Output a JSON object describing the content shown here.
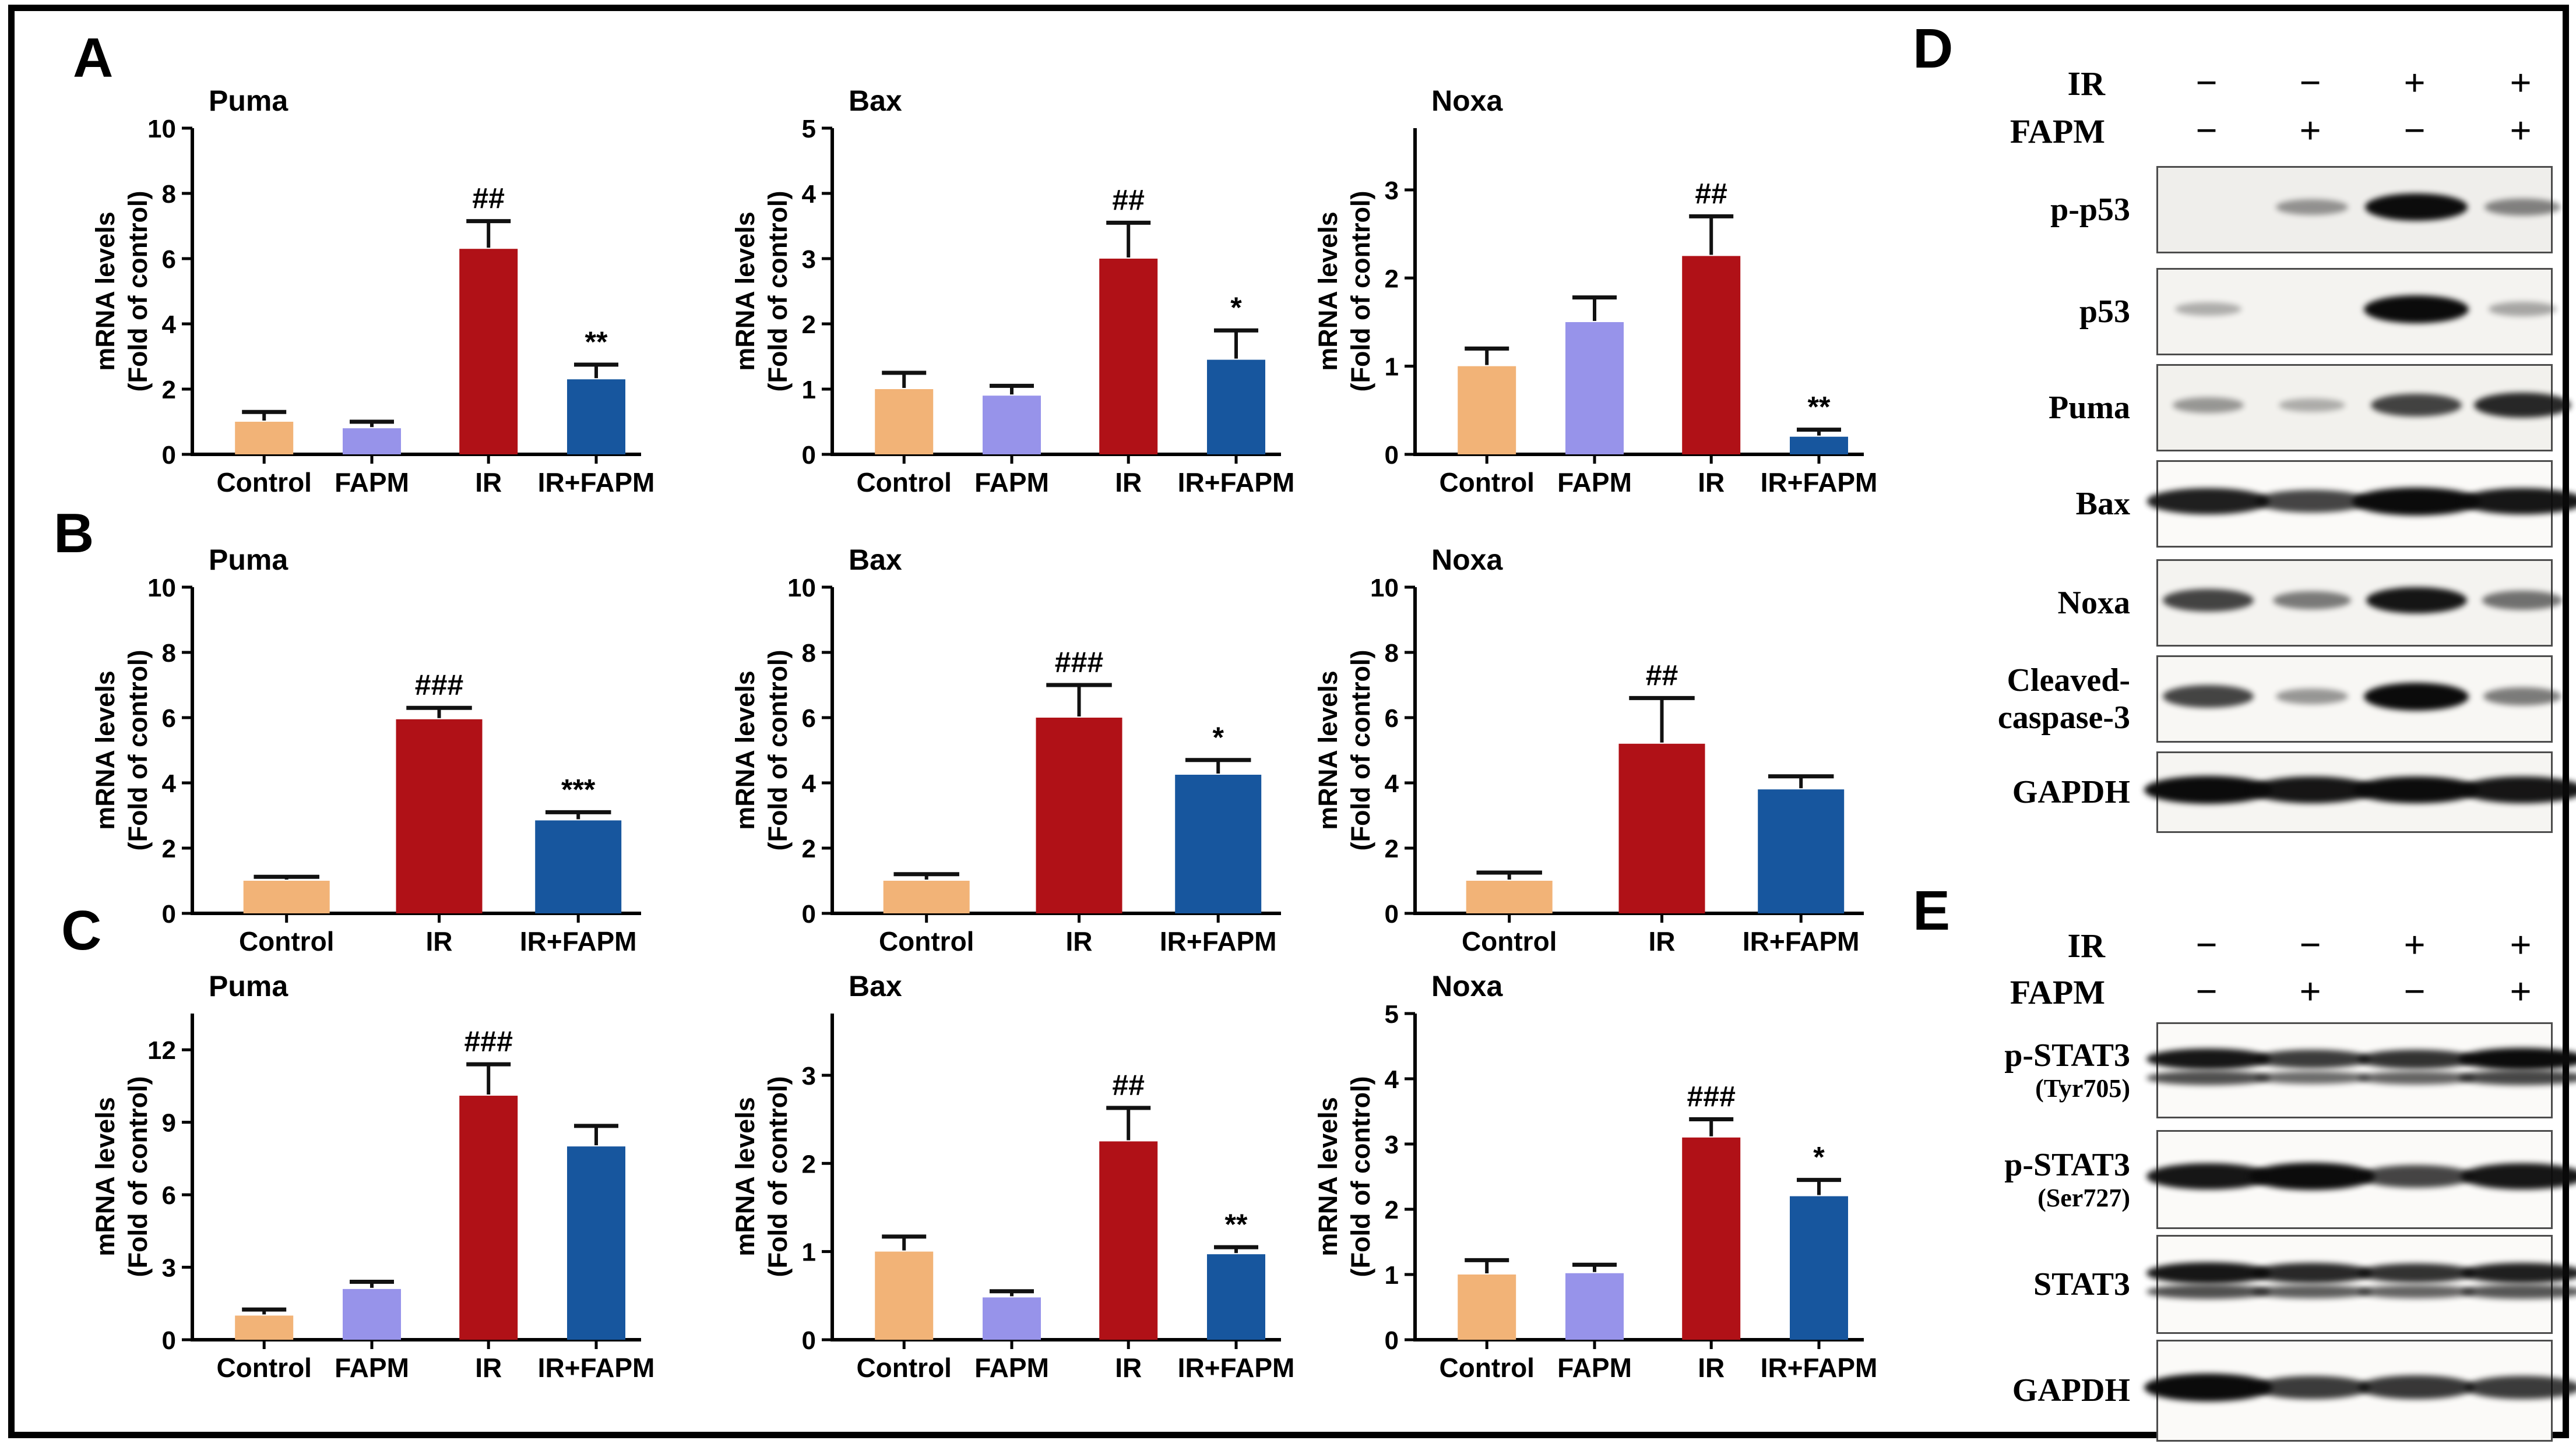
{
  "panels": {
    "a": "A",
    "b": "B",
    "c": "C",
    "d": "D",
    "e": "E"
  },
  "palette": {
    "control": "#F2B377",
    "fapm": "#9793EA",
    "ir": "#B01117",
    "ir_fapm": "#17569E",
    "axis": "#000000",
    "error_bar": "#111111"
  },
  "chart_data": [
    {
      "panel": "A",
      "row": 0,
      "col": 0,
      "type": "bar",
      "title": "Puma",
      "ylabel1": "mRNA levels",
      "ylabel2": "(Fold of control)",
      "categories": [
        "Control",
        "FAPM",
        "IR",
        "IR+FAPM"
      ],
      "color_keys": [
        "control",
        "fapm",
        "ir",
        "ir_fapm"
      ],
      "values": [
        1.0,
        0.8,
        6.3,
        2.3
      ],
      "errors": [
        0.3,
        0.2,
        0.85,
        0.45
      ],
      "annotations": [
        "",
        "",
        "##",
        "**"
      ],
      "yticks": [
        0,
        2,
        4,
        6,
        8,
        10
      ],
      "ylim": [
        0,
        10
      ],
      "grid": false,
      "legend": "none"
    },
    {
      "panel": "A",
      "row": 0,
      "col": 1,
      "type": "bar",
      "title": "Bax",
      "ylabel1": "mRNA levels",
      "ylabel2": "(Fold of control)",
      "categories": [
        "Control",
        "FAPM",
        "IR",
        "IR+FAPM"
      ],
      "color_keys": [
        "control",
        "fapm",
        "ir",
        "ir_fapm"
      ],
      "values": [
        1.0,
        0.9,
        3.0,
        1.45
      ],
      "errors": [
        0.25,
        0.15,
        0.55,
        0.45
      ],
      "annotations": [
        "",
        "",
        "##",
        "*"
      ],
      "yticks": [
        0,
        1,
        2,
        3,
        4,
        5
      ],
      "ylim": [
        0,
        5
      ],
      "grid": false,
      "legend": "none"
    },
    {
      "panel": "A",
      "row": 0,
      "col": 2,
      "type": "bar",
      "title": "Noxa",
      "ylabel1": "mRNA levels",
      "ylabel2": "(Fold of control)",
      "categories": [
        "Control",
        "FAPM",
        "IR",
        "IR+FAPM"
      ],
      "color_keys": [
        "control",
        "fapm",
        "ir",
        "ir_fapm"
      ],
      "values": [
        1.0,
        1.5,
        2.25,
        0.2
      ],
      "errors": [
        0.2,
        0.28,
        0.45,
        0.08
      ],
      "annotations": [
        "",
        "",
        "##",
        "**"
      ],
      "yticks": [
        0,
        1,
        2,
        3
      ],
      "ylim": [
        0,
        3.7
      ],
      "grid": false,
      "legend": "none"
    },
    {
      "panel": "B",
      "row": 1,
      "col": 0,
      "type": "bar",
      "title": "Puma",
      "ylabel1": "mRNA levels",
      "ylabel2": "(Fold of control)",
      "categories": [
        "Control",
        "IR",
        "IR+FAPM"
      ],
      "color_keys": [
        "control",
        "ir",
        "ir_fapm"
      ],
      "values": [
        1.0,
        5.95,
        2.85
      ],
      "errors": [
        0.12,
        0.35,
        0.25
      ],
      "annotations": [
        "",
        "###",
        "***"
      ],
      "yticks": [
        0,
        2,
        4,
        6,
        8,
        10
      ],
      "ylim": [
        0,
        10
      ],
      "grid": false,
      "legend": "none"
    },
    {
      "panel": "B",
      "row": 1,
      "col": 1,
      "type": "bar",
      "title": "Bax",
      "ylabel1": "mRNA levels",
      "ylabel2": "(Fold of control)",
      "categories": [
        "Control",
        "IR",
        "IR+FAPM"
      ],
      "color_keys": [
        "control",
        "ir",
        "ir_fapm"
      ],
      "values": [
        1.0,
        6.0,
        4.25
      ],
      "errors": [
        0.2,
        1.0,
        0.45
      ],
      "annotations": [
        "",
        "###",
        "*"
      ],
      "yticks": [
        0,
        2,
        4,
        6,
        8,
        10
      ],
      "ylim": [
        0,
        10
      ],
      "grid": false,
      "legend": "none"
    },
    {
      "panel": "B",
      "row": 1,
      "col": 2,
      "type": "bar",
      "title": "Noxa",
      "ylabel1": "mRNA levels",
      "ylabel2": "(Fold of control)",
      "categories": [
        "Control",
        "IR",
        "IR+FAPM"
      ],
      "color_keys": [
        "control",
        "ir",
        "ir_fapm"
      ],
      "values": [
        1.0,
        5.2,
        3.8
      ],
      "errors": [
        0.25,
        1.4,
        0.4
      ],
      "annotations": [
        "",
        "##",
        ""
      ],
      "yticks": [
        0,
        2,
        4,
        6,
        8,
        10
      ],
      "ylim": [
        0,
        10
      ],
      "grid": false,
      "legend": "none"
    },
    {
      "panel": "C",
      "row": 2,
      "col": 0,
      "type": "bar",
      "title": "Puma",
      "ylabel1": "mRNA levels",
      "ylabel2": "(Fold of control)",
      "categories": [
        "Control",
        "FAPM",
        "IR",
        "IR+FAPM"
      ],
      "color_keys": [
        "control",
        "fapm",
        "ir",
        "ir_fapm"
      ],
      "values": [
        1.0,
        2.1,
        10.1,
        8.0
      ],
      "errors": [
        0.25,
        0.3,
        1.3,
        0.85
      ],
      "annotations": [
        "",
        "",
        "###",
        ""
      ],
      "yticks": [
        0,
        3,
        6,
        9,
        12
      ],
      "ylim": [
        0,
        13.5
      ],
      "grid": false,
      "legend": "none"
    },
    {
      "panel": "C",
      "row": 2,
      "col": 1,
      "type": "bar",
      "title": "Bax",
      "ylabel1": "mRNA levels",
      "ylabel2": "(Fold of control)",
      "categories": [
        "Control",
        "FAPM",
        "IR",
        "IR+FAPM"
      ],
      "color_keys": [
        "control",
        "fapm",
        "ir",
        "ir_fapm"
      ],
      "values": [
        1.0,
        0.48,
        2.25,
        0.97
      ],
      "errors": [
        0.17,
        0.07,
        0.38,
        0.08
      ],
      "annotations": [
        "",
        "",
        "##",
        "**"
      ],
      "yticks": [
        0,
        1,
        2,
        3
      ],
      "ylim": [
        0,
        3.7
      ],
      "grid": false,
      "legend": "none"
    },
    {
      "panel": "C",
      "row": 2,
      "col": 2,
      "type": "bar",
      "title": "Noxa",
      "ylabel1": "mRNA levels",
      "ylabel2": "(Fold of control)",
      "categories": [
        "Control",
        "FAPM",
        "IR",
        "IR+FAPM"
      ],
      "color_keys": [
        "control",
        "fapm",
        "ir",
        "ir_fapm"
      ],
      "values": [
        1.0,
        1.02,
        3.1,
        2.2
      ],
      "errors": [
        0.22,
        0.13,
        0.28,
        0.25
      ],
      "annotations": [
        "",
        "",
        "###",
        "*"
      ],
      "yticks": [
        0,
        1,
        2,
        3,
        4,
        5
      ],
      "ylim": [
        0,
        5
      ],
      "grid": false,
      "legend": "none"
    }
  ],
  "blot_panels": [
    {
      "id": "d",
      "letter": "D",
      "treatments": [
        {
          "name": "IR",
          "signs": [
            "−",
            "−",
            "+",
            "+"
          ]
        },
        {
          "name": "FAPM",
          "signs": [
            "−",
            "+",
            "−",
            "+"
          ]
        }
      ],
      "blots": [
        {
          "label": "p-p53",
          "bands": [
            0,
            0.2,
            0.95,
            0.3
          ],
          "bg": "#efeeeb"
        },
        {
          "label": "p53",
          "bands": [
            0.06,
            0.04,
            1,
            0.1
          ],
          "bg": "#f4f3f0"
        },
        {
          "label": "Puma",
          "bands": [
            0.18,
            0.06,
            0.65,
            0.8
          ],
          "bg": "#f2f1ed"
        },
        {
          "label": "Bax",
          "bands": [
            0.85,
            0.65,
            1,
            0.9
          ],
          "bg": "#fbfaf8",
          "wide": true
        },
        {
          "label": "Noxa",
          "bands": [
            0.65,
            0.35,
            0.9,
            0.4
          ],
          "bg": "#f4f3f0"
        },
        {
          "label": "Cleaved-",
          "label2": "caspase-3",
          "bands": [
            0.65,
            0.2,
            1,
            0.35
          ],
          "bg": "#f8f7f4"
        },
        {
          "label": "GAPDH",
          "bands": [
            1,
            0.9,
            0.95,
            0.9
          ],
          "bg": "#f6f5f2",
          "wide": true
        }
      ]
    },
    {
      "id": "e",
      "letter": "E",
      "treatments": [
        {
          "name": "IR",
          "signs": [
            "−",
            "−",
            "+",
            "+"
          ]
        },
        {
          "name": "FAPM",
          "signs": [
            "−",
            "+",
            "−",
            "+"
          ]
        }
      ],
      "blots": [
        {
          "label": "p-STAT3",
          "label2": "(Tyr705)",
          "label2_small": true,
          "bands": [
            0.9,
            0.7,
            0.75,
            1
          ],
          "doublet": true,
          "bg": "#fbfaf8",
          "wide": true
        },
        {
          "label": "p-STAT3",
          "label2": "(Ser727)",
          "label2_small": true,
          "bands": [
            0.9,
            0.95,
            0.65,
            0.9
          ],
          "bg": "#fbfaf8",
          "wide": true
        },
        {
          "label": "STAT3",
          "bands": [
            0.9,
            0.8,
            0.75,
            0.85
          ],
          "doublet": true,
          "bg": "#fbfaf8",
          "wide": true
        },
        {
          "label": "GAPDH",
          "bands": [
            1,
            0.7,
            0.72,
            0.7
          ],
          "bg": "#fbfaf8",
          "wide": true
        }
      ]
    }
  ]
}
